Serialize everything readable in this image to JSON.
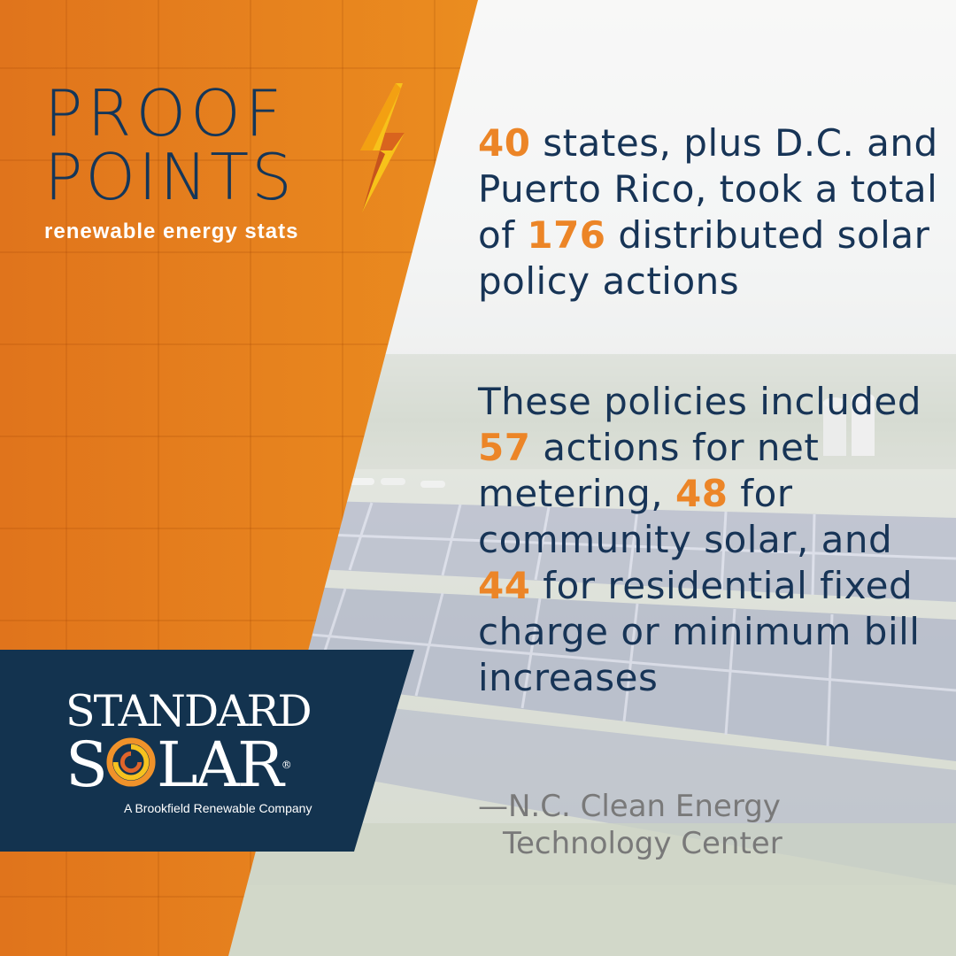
{
  "title": {
    "line1": "PROOF",
    "line2": "POINTS",
    "subtitle": "renewable energy stats"
  },
  "stat1": {
    "num1": "40",
    "part1": " states, plus D.C. and Puerto Rico, took a total of ",
    "num2": "176",
    "part2": " distributed solar policy actions"
  },
  "stat2": {
    "part1": "These policies included ",
    "num1": "57",
    "part2": " actions for net metering, ",
    "num2": "48",
    "part3": " for community solar, and ",
    "num3": "44",
    "part4": " for residential fixed charge or minimum bill increases"
  },
  "source": {
    "line1": "—N.C. Clean Energy",
    "line2": "Technology Center"
  },
  "logo": {
    "line1": "STANDARD",
    "line2_a": "S",
    "line2_b": "LAR",
    "registered": "®",
    "tagline": "A Brookfield Renewable Company"
  },
  "colors": {
    "accent_orange": "#ec8527",
    "navy": "#13334f",
    "source_gray": "#797979"
  },
  "icons": [
    "lightning-bolt-icon",
    "sun-swirl-logo-icon"
  ]
}
